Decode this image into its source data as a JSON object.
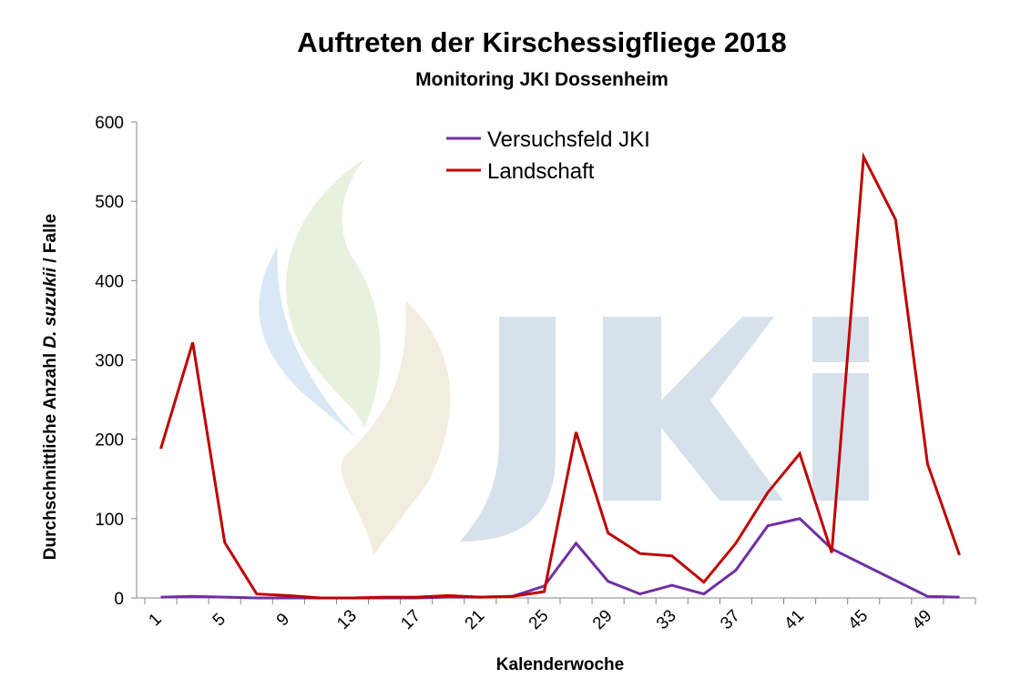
{
  "chart_data": {
    "type": "line",
    "title": "Auftreten der Kirschessigfliege 2018",
    "subtitle": "Monitoring JKI Dossenheim",
    "xlabel": "Kalenderwoche",
    "ylabel_parts": [
      "Durchschnittliche Anzahl ",
      "D. suzukii",
      " / Falle"
    ],
    "ylabel": "Durchschnittliche Anzahl D. suzukii / Falle",
    "ylim": [
      0,
      600
    ],
    "yticks": [
      0,
      100,
      200,
      300,
      400,
      500,
      600
    ],
    "x": [
      1,
      3,
      5,
      7,
      9,
      11,
      13,
      15,
      17,
      19,
      21,
      23,
      25,
      27,
      29,
      31,
      33,
      35,
      37,
      39,
      41,
      43,
      45,
      47,
      49,
      51
    ],
    "xtick_labels": [
      "1",
      "5",
      "9",
      "13",
      "17",
      "21",
      "25",
      "29",
      "33",
      "37",
      "41",
      "45",
      "49"
    ],
    "legend_position": "top-center",
    "grid": false,
    "watermark": "JKI",
    "series": [
      {
        "name": "Versuchsfeld JKI",
        "color": "#7030A0",
        "values": [
          1,
          2,
          1,
          0,
          0,
          0,
          0,
          0,
          0,
          1,
          1,
          2,
          15,
          69,
          21,
          5,
          16,
          5,
          35,
          91,
          100,
          62,
          null,
          null,
          2,
          1
        ]
      },
      {
        "name": "Landschaft",
        "color": "#C00000",
        "values": [
          188,
          322,
          70,
          5,
          3,
          0,
          0,
          1,
          1,
          3,
          1,
          2,
          8,
          209,
          82,
          56,
          53,
          20,
          69,
          133,
          182,
          57,
          556,
          477,
          169,
          54
        ]
      }
    ]
  }
}
